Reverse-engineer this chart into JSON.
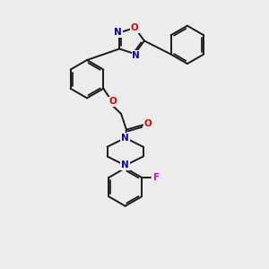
{
  "bg_color": "#ececec",
  "bond_color": "#1a1a1a",
  "atom_colors": {
    "O": "#e00000",
    "N": "#0000cc",
    "F": "#e000e0",
    "C": "#1a1a1a"
  },
  "lw": 1.4,
  "fontsize": 7.5,
  "figsize": [
    3.0,
    3.0
  ],
  "dpi": 100
}
